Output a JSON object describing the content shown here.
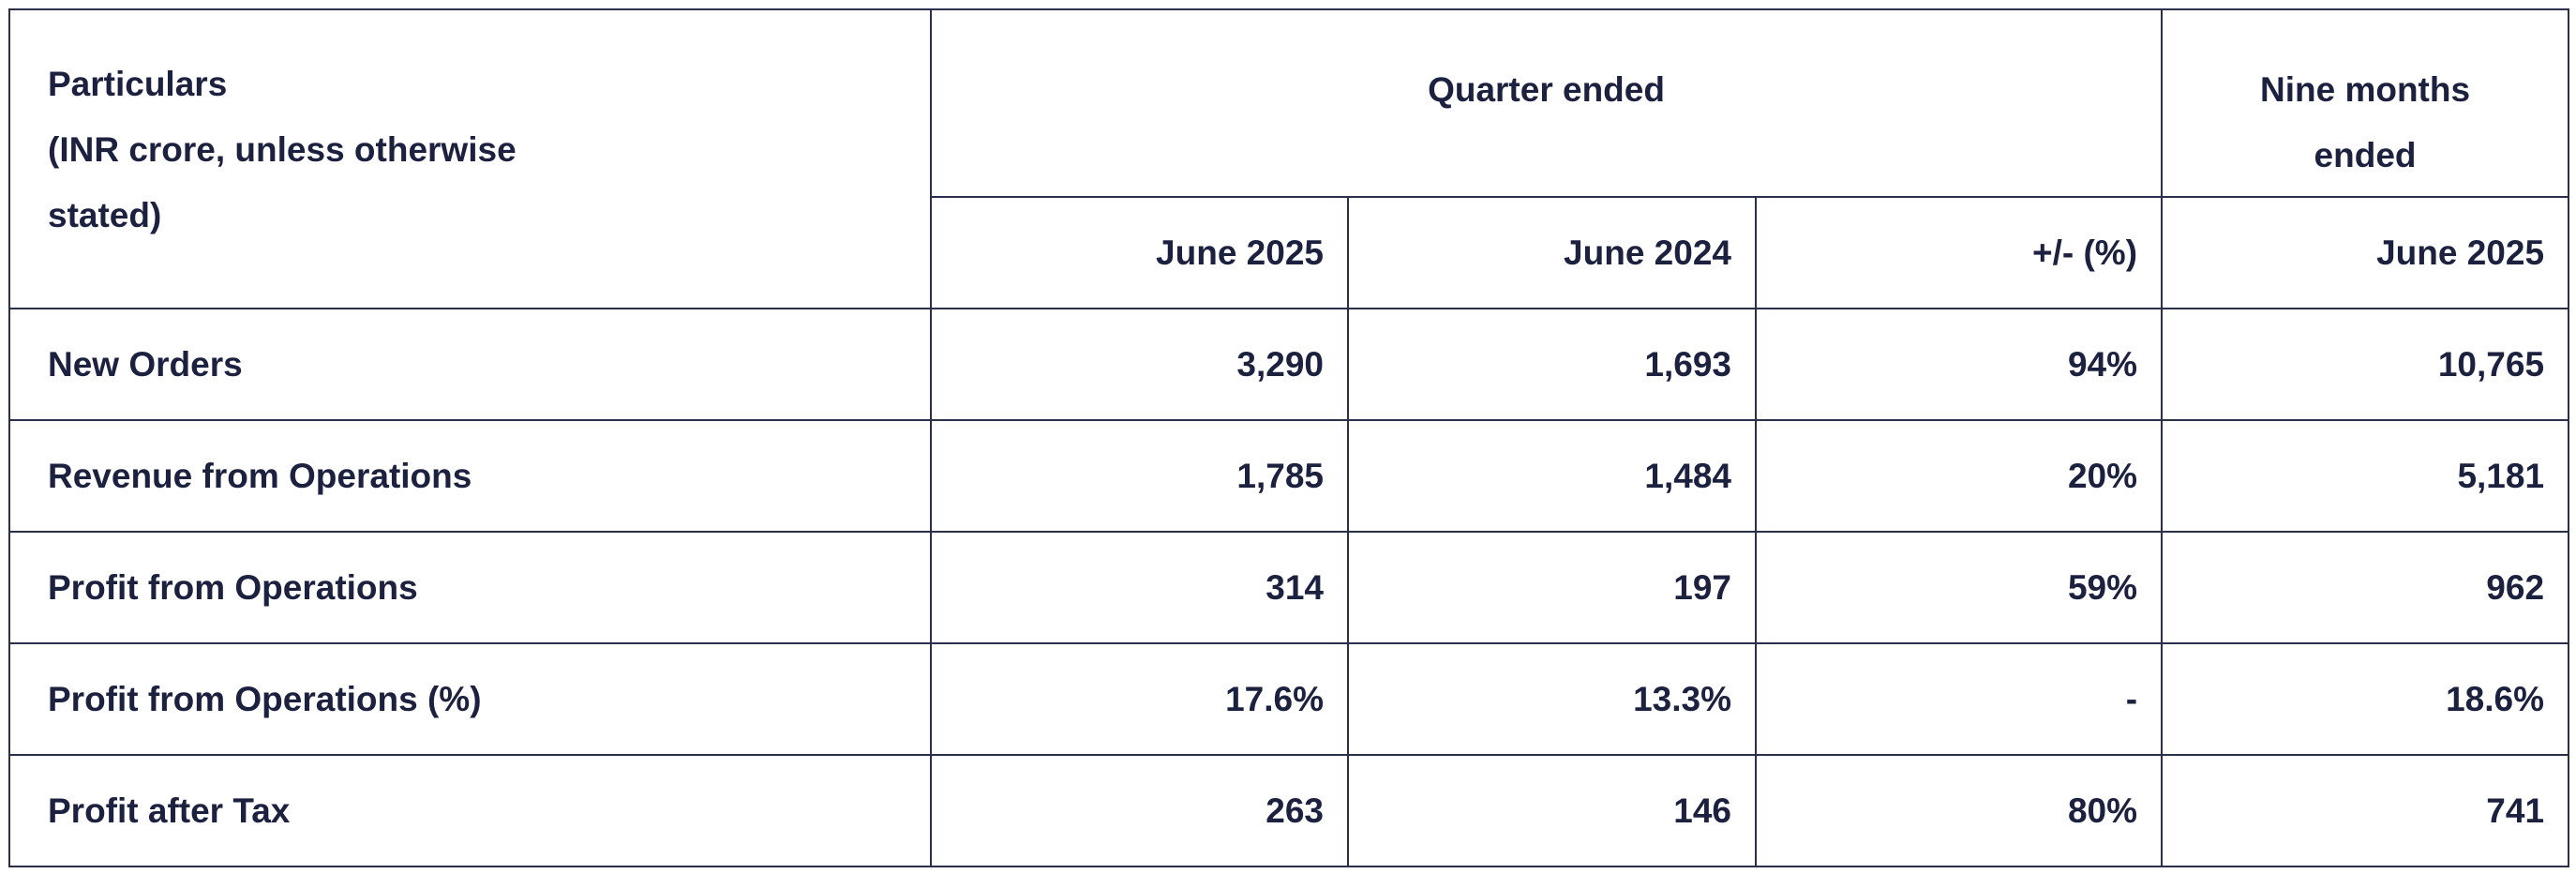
{
  "header": {
    "particulars": [
      "Particulars",
      "(INR crore, unless otherwise",
      "stated)"
    ],
    "quarter_ended": "Quarter ended",
    "nine_months_ended": [
      "Nine months",
      "ended"
    ],
    "subheaders": [
      "June 2025",
      "June 2024",
      "+/- (%)",
      "June 2025"
    ]
  },
  "table": {
    "rows": [
      {
        "label": "New Orders",
        "values": [
          "3,290",
          "1,693",
          "94%",
          "10,765"
        ]
      },
      {
        "label": "Revenue from Operations",
        "values": [
          "1,785",
          "1,484",
          "20%",
          "5,181"
        ]
      },
      {
        "label": "Profit from Operations",
        "values": [
          "314",
          "197",
          "59%",
          "962"
        ]
      },
      {
        "label": "Profit from Operations (%)",
        "values": [
          "17.6%",
          "13.3%",
          "-",
          "18.6%"
        ]
      },
      {
        "label": "Profit after Tax",
        "values": [
          "263",
          "146",
          "80%",
          "741"
        ]
      }
    ]
  }
}
